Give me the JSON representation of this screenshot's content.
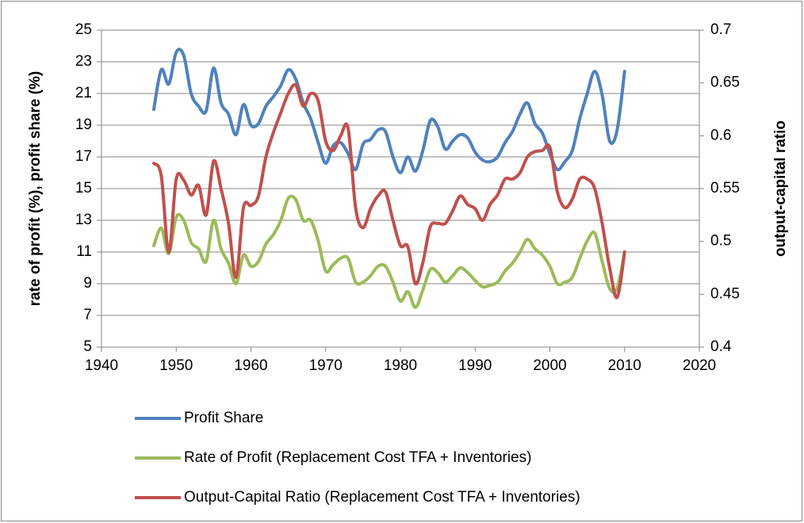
{
  "chart_data": {
    "type": "line",
    "ylabel": "rate of profit (%), profit share (%)",
    "y2label": "output-capital ratio",
    "x": [
      1947,
      1948,
      1949,
      1950,
      1951,
      1952,
      1953,
      1954,
      1955,
      1956,
      1957,
      1958,
      1959,
      1960,
      1961,
      1962,
      1963,
      1964,
      1965,
      1966,
      1967,
      1968,
      1969,
      1970,
      1971,
      1972,
      1973,
      1974,
      1975,
      1976,
      1977,
      1978,
      1979,
      1980,
      1981,
      1982,
      1983,
      1984,
      1985,
      1986,
      1987,
      1988,
      1989,
      1990,
      1991,
      1992,
      1993,
      1994,
      1995,
      1996,
      1997,
      1998,
      1999,
      2000,
      2001,
      2002,
      2003,
      2004,
      2005,
      2006,
      2007,
      2008,
      2009,
      2010
    ],
    "series": [
      {
        "name": "Profit Share",
        "color": "#4f81bd",
        "values": [
          20.0,
          22.5,
          21.6,
          23.6,
          23.4,
          21.0,
          20.2,
          19.9,
          22.6,
          20.4,
          19.7,
          18.4,
          20.3,
          19.0,
          19.1,
          20.2,
          20.8,
          21.5,
          22.5,
          21.9,
          20.4,
          19.4,
          17.9,
          16.6,
          17.7,
          17.9,
          17.2,
          16.2,
          17.8,
          18.1,
          18.7,
          18.6,
          17.0,
          16.0,
          17.0,
          16.1,
          17.4,
          19.3,
          18.9,
          17.5,
          18.0,
          18.4,
          18.2,
          17.3,
          16.8,
          16.7,
          17.0,
          17.9,
          18.6,
          19.7,
          20.4,
          19.1,
          18.5,
          17.2,
          16.2,
          16.7,
          17.4,
          19.4,
          21.0,
          22.4,
          20.9,
          18.0,
          18.7,
          22.4
        ]
      },
      {
        "name": "Rate of Profit (Replacement Cost TFA + Inventories)",
        "color": "#9bbb59",
        "values": [
          11.4,
          12.5,
          10.9,
          13.2,
          13.0,
          11.6,
          11.2,
          10.4,
          13.0,
          11.2,
          10.3,
          9.0,
          10.8,
          10.1,
          10.4,
          11.5,
          12.1,
          13.0,
          14.4,
          14.3,
          13.0,
          13.0,
          11.7,
          9.8,
          10.2,
          10.6,
          10.6,
          9.1,
          9.1,
          9.5,
          10.1,
          10.1,
          9.1,
          7.9,
          8.5,
          7.5,
          8.6,
          9.9,
          9.7,
          9.1,
          9.5,
          10.0,
          9.7,
          9.2,
          8.8,
          8.9,
          9.1,
          9.8,
          10.3,
          11.0,
          11.8,
          11.2,
          10.8,
          10.1,
          9.0,
          9.1,
          9.4,
          10.6,
          11.7,
          12.2,
          10.4,
          8.7,
          8.7,
          11.0
        ]
      },
      {
        "name": "Output-Capital Ratio (Replacement Cost TFA + Inventories)",
        "color": "#c0504d",
        "axis": "y2",
        "values": [
          0.574,
          0.562,
          0.49,
          0.559,
          0.558,
          0.544,
          0.553,
          0.525,
          0.576,
          0.55,
          0.517,
          0.466,
          0.532,
          0.534,
          0.543,
          0.58,
          0.603,
          0.622,
          0.64,
          0.648,
          0.628,
          0.64,
          0.633,
          0.595,
          0.586,
          0.6,
          0.607,
          0.532,
          0.513,
          0.531,
          0.543,
          0.547,
          0.52,
          0.496,
          0.495,
          0.46,
          0.48,
          0.514,
          0.517,
          0.517,
          0.529,
          0.543,
          0.535,
          0.531,
          0.52,
          0.535,
          0.544,
          0.559,
          0.559,
          0.565,
          0.58,
          0.585,
          0.586,
          0.589,
          0.547,
          0.532,
          0.54,
          0.559,
          0.559,
          0.55,
          0.517,
          0.475,
          0.447,
          0.49
        ]
      }
    ],
    "xlim": [
      1940,
      2020
    ],
    "xticks": [
      1940,
      1950,
      1960,
      1970,
      1980,
      1990,
      2000,
      2010,
      2020
    ],
    "ylim": [
      5,
      25
    ],
    "yticks": [
      5,
      7,
      9,
      11,
      13,
      15,
      17,
      19,
      21,
      23,
      25
    ],
    "y2lim": [
      0.4,
      0.7
    ],
    "y2ticks": [
      0.4,
      0.45,
      0.5,
      0.55,
      0.6,
      0.65,
      0.7
    ],
    "grid": true,
    "legend": "bottom"
  }
}
